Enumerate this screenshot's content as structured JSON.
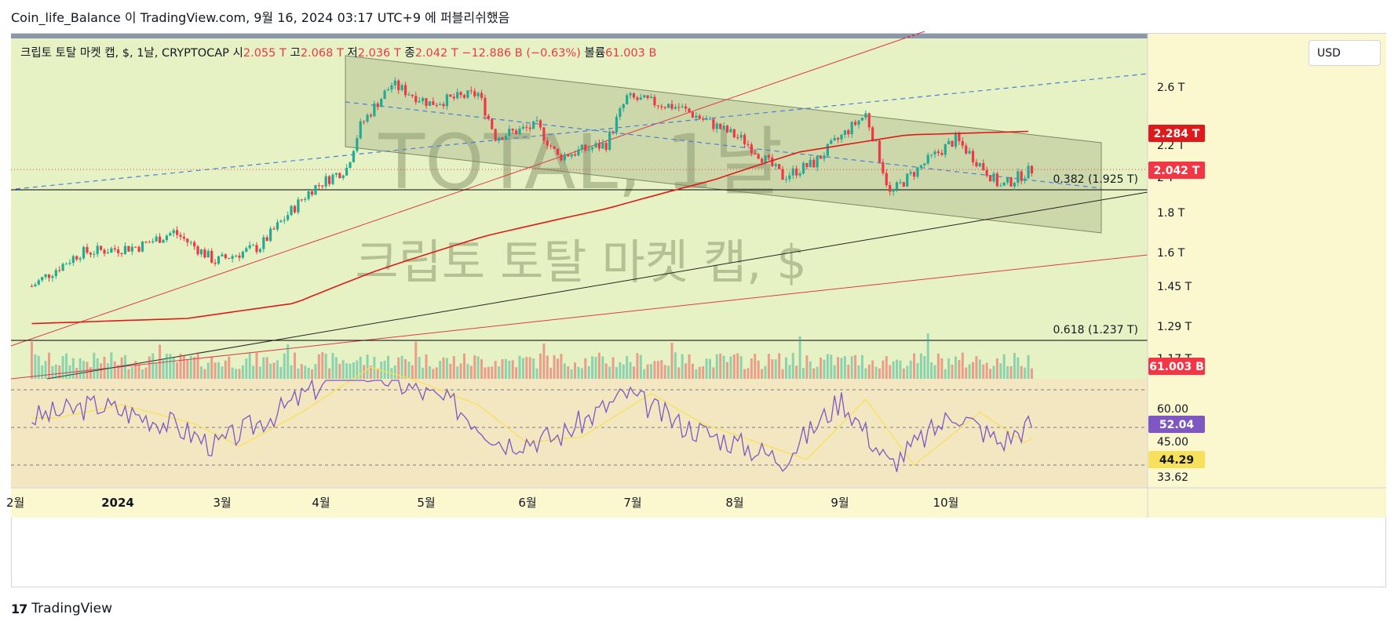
{
  "header": {
    "text": "Coin_life_Balance 이 TradingView.com, 9월 16, 2024 03:17 UTC+9 에 퍼블리쉬했음"
  },
  "legend": {
    "symbol": "크립토 토탈 마켓 캡, $, 1날, CRYPTOCAP",
    "open_label": "시",
    "open": "2.055 T",
    "high_label": "고",
    "high": "2.068 T",
    "low_label": "저",
    "low": "2.036 T",
    "close_label": "종",
    "close": "2.042 T",
    "change": "−12.886 B (−0.63%)",
    "volume_label": "볼륨",
    "volume": "61.003 B"
  },
  "currency": "USD",
  "watermark": {
    "line1": "TOTAL, 1날",
    "line2": "크립토 토탈 마켓 캡, $"
  },
  "footer": {
    "brand": "TradingView"
  },
  "colors": {
    "bg_main": "#e6f2c4",
    "bg_rsi": "#f3e7c2",
    "bg_axis": "#fbf7cf",
    "candle_up": "#22ab94",
    "candle_down": "#f23645",
    "ma_line": "#e01a1a",
    "rsi_line": "#7e57c2",
    "rsi_ma": "#f7e05a",
    "fib_line": "#000000",
    "dash_line": "#4a7fd8"
  },
  "chart_data": {
    "type": "candlestick",
    "title": "크립토 토탈 마켓 캡, $, 1날, CRYPTOCAP",
    "x_labels": [
      "2월",
      "2024",
      "3월",
      "4월",
      "5월",
      "6월",
      "7월",
      "8월",
      "9월",
      "10월"
    ],
    "x_labels_note": "first label partially cut off at left edge",
    "y_axis_ticks": [
      "2.6 T",
      "2.2 T",
      "2 T",
      "1.8 T",
      "1.6 T",
      "1.45 T",
      "1.29 T",
      "1.17 T"
    ],
    "y_scale": "log",
    "price_close_series": {
      "x": [
        "2023-12-01",
        "2023-12-15",
        "2024-01-01",
        "2024-01-11",
        "2024-01-23",
        "2024-02-05",
        "2024-02-20",
        "2024-03-01",
        "2024-03-05",
        "2024-03-14",
        "2024-03-25",
        "2024-04-08",
        "2024-04-13",
        "2024-04-25",
        "2024-05-01",
        "2024-05-15",
        "2024-05-21",
        "2024-06-05",
        "2024-06-24",
        "2024-07-05",
        "2024-07-14",
        "2024-07-29",
        "2024-08-05",
        "2024-08-15",
        "2024-08-24",
        "2024-09-06",
        "2024-09-15"
      ],
      "y": [
        1.45,
        1.6,
        1.63,
        1.7,
        1.56,
        1.63,
        1.93,
        2.05,
        2.32,
        2.62,
        2.48,
        2.55,
        2.25,
        2.32,
        2.12,
        2.2,
        2.52,
        2.45,
        2.22,
        2.0,
        2.08,
        2.4,
        1.9,
        2.08,
        2.23,
        1.94,
        2.042
      ]
    },
    "ma200": {
      "name": "MA",
      "label": "2.284 T"
    },
    "last_price_label": "2.042 T",
    "volume_label": "61.003 B",
    "fib_levels": [
      {
        "label": "0.382 (1.925 T)",
        "value": 1.925
      },
      {
        "label": "0.618 (1.237 T)",
        "value": 1.237
      }
    ],
    "rsi": {
      "ticks": [
        "60.00",
        "45.00",
        "33.62"
      ],
      "value_label": "52.04",
      "ma_label": "44.29",
      "band_upper": 70,
      "band_middle": 50,
      "band_lower": 30,
      "x": [
        "2023-12-01",
        "2023-12-20",
        "2024-01-10",
        "2024-01-23",
        "2024-02-10",
        "2024-03-01",
        "2024-03-14",
        "2024-04-01",
        "2024-04-15",
        "2024-05-01",
        "2024-05-21",
        "2024-06-05",
        "2024-06-24",
        "2024-07-05",
        "2024-07-22",
        "2024-08-05",
        "2024-08-24",
        "2024-09-06",
        "2024-09-15"
      ],
      "y": [
        55,
        62,
        52,
        40,
        58,
        82,
        75,
        62,
        42,
        45,
        68,
        52,
        40,
        33,
        65,
        30,
        58,
        42,
        52
      ]
    }
  }
}
